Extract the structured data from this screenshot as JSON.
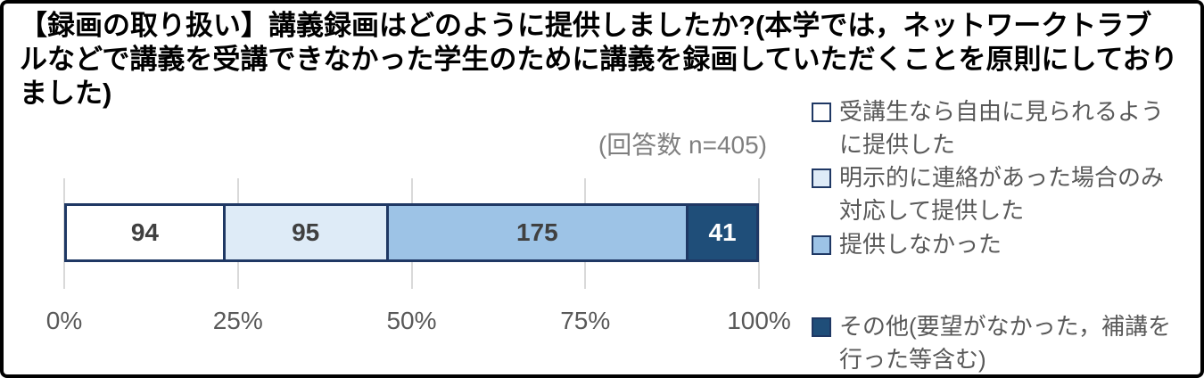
{
  "title": "【録画の取り扱い】講義録画はどのように提供しましたか?(本学では，ネットワークトラブルなどで講義を受講できなかった学生のために講義を録画していただくことを原則にしておりました)",
  "note": "(回答数 n=405)",
  "colors": {
    "frame_border": "#000000",
    "background": "#ffffff",
    "segment_border": "#1f3864",
    "gridline": "#d9d9d9",
    "axis_label": "#595959",
    "legend_text": "#595959",
    "title_text": "#000000",
    "note_text": "#7f7f7f"
  },
  "chart_data": {
    "type": "bar",
    "orientation": "horizontal",
    "stacked": true,
    "title": "【録画の取り扱い】講義録画はどのように提供しましたか?(本学では，ネットワークトラブルなどで講義を受講できなかった学生のために講義を録画していただくことを原則にしておりました)",
    "note": "(回答数 n=405)",
    "total": 405,
    "series": [
      {
        "name": "受講生なら自由に見られるように提供した",
        "value": 94,
        "fill": "#ffffff",
        "label_color": "#404040"
      },
      {
        "name": "明示的に連絡があった場合のみ対応して提供した",
        "value": 95,
        "fill": "#deebf7",
        "label_color": "#404040"
      },
      {
        "name": "提供しなかった",
        "value": 175,
        "fill": "#9dc3e6",
        "label_color": "#404040"
      },
      {
        "name": "その他(要望がなかった，補講を行った等含む)",
        "value": 41,
        "fill": "#1f4e79",
        "label_color": "#ffffff"
      }
    ],
    "x_ticks": [
      "0%",
      "25%",
      "50%",
      "75%",
      "100%"
    ],
    "x_range": [
      0,
      100
    ],
    "grid": true,
    "legend_position": "right"
  }
}
